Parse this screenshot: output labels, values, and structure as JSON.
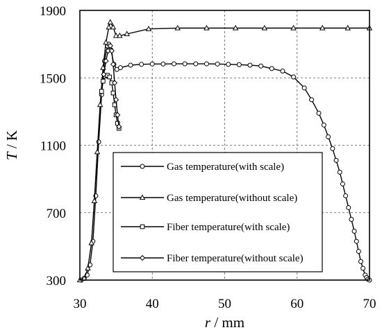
{
  "chart_data": {
    "type": "line",
    "xlabel_var": "r",
    "xlabel_unit": " / mm",
    "ylabel_var": "T",
    "ylabel_unit": " / K",
    "xlim": [
      30,
      70
    ],
    "ylim": [
      300,
      1900
    ],
    "xticks": [
      30,
      40,
      50,
      60,
      70
    ],
    "yticks": [
      300,
      700,
      1100,
      1500,
      1900
    ],
    "grid": "dashed",
    "legend_position": "center-left",
    "series": [
      {
        "name": "Gas temperature(with scale)",
        "marker": "circle",
        "x": [
          30.2,
          30.6,
          31.0,
          31.4,
          31.8,
          32.2,
          32.6,
          33.0,
          33.4,
          33.8,
          34.0,
          34.3,
          34.7,
          35.1,
          35.6,
          37.0,
          38.5,
          40.0,
          41.5,
          43.0,
          44.5,
          46.0,
          47.5,
          49.0,
          50.5,
          52.0,
          53.5,
          55.0,
          56.5,
          58.0,
          59.5,
          61.0,
          62.0,
          63.0,
          63.7,
          64.3,
          64.9,
          65.4,
          65.9,
          66.3,
          66.7,
          67.1,
          67.5,
          67.9,
          68.2,
          68.5,
          68.8,
          69.1,
          69.4,
          69.6,
          69.8,
          70.0
        ],
        "y": [
          300,
          310,
          330,
          390,
          530,
          800,
          1120,
          1400,
          1600,
          1690,
          1700,
          1665,
          1580,
          1550,
          1560,
          1575,
          1580,
          1582,
          1582,
          1583,
          1583,
          1583,
          1583,
          1582,
          1580,
          1578,
          1575,
          1570,
          1555,
          1540,
          1505,
          1440,
          1370,
          1290,
          1220,
          1150,
          1080,
          1010,
          940,
          870,
          800,
          730,
          660,
          590,
          530,
          470,
          410,
          370,
          330,
          315,
          305,
          300
        ]
      },
      {
        "name": "Gas temperature(without scale)",
        "marker": "triangle",
        "x": [
          30.0,
          30.6,
          31.1,
          31.6,
          32.0,
          32.4,
          32.8,
          33.2,
          33.6,
          34.0,
          34.2,
          34.6,
          35.0,
          35.5,
          36.5,
          39.5,
          43.5,
          47.5,
          51.5,
          55.5,
          59.5,
          63.5,
          67.0,
          70.0
        ],
        "y": [
          300,
          310,
          370,
          520,
          770,
          1060,
          1340,
          1560,
          1710,
          1800,
          1830,
          1800,
          1750,
          1750,
          1760,
          1790,
          1795,
          1795,
          1795,
          1795,
          1795,
          1795,
          1795,
          1795
        ]
      },
      {
        "name": "Fiber temperature(with scale)",
        "marker": "square",
        "x": [
          33.0,
          33.2,
          33.5,
          33.8,
          34.1,
          34.4,
          34.6,
          34.8,
          35.0,
          35.2,
          35.4
        ],
        "y": [
          1420,
          1480,
          1510,
          1515,
          1505,
          1470,
          1410,
          1340,
          1280,
          1230,
          1200
        ]
      },
      {
        "name": "Fiber temperature(without scale)",
        "marker": "diamond",
        "x": [
          33.3,
          33.6,
          33.9,
          34.2,
          34.4,
          34.6,
          34.8,
          35.0,
          35.2,
          35.4
        ],
        "y": [
          1520,
          1600,
          1660,
          1690,
          1660,
          1580,
          1470,
          1370,
          1280,
          1210
        ]
      }
    ]
  }
}
